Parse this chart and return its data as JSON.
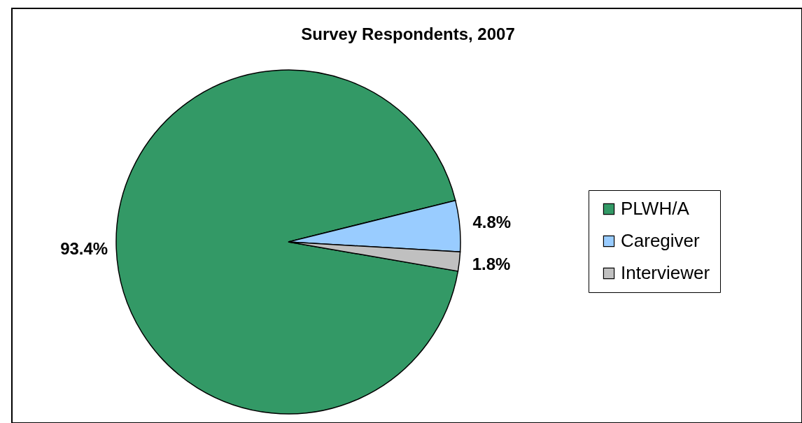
{
  "chart_data": {
    "type": "pie",
    "title": "Survey Respondents, 2007",
    "categories": [
      "PLWH/A",
      "Caregiver",
      "Interviewer"
    ],
    "values": [
      93.4,
      4.8,
      1.8
    ],
    "colors": [
      "#339966",
      "#99ccff",
      "#c0c0c0"
    ],
    "value_labels": [
      "93.4%",
      "4.8%",
      "1.8%"
    ],
    "legend": "right"
  }
}
